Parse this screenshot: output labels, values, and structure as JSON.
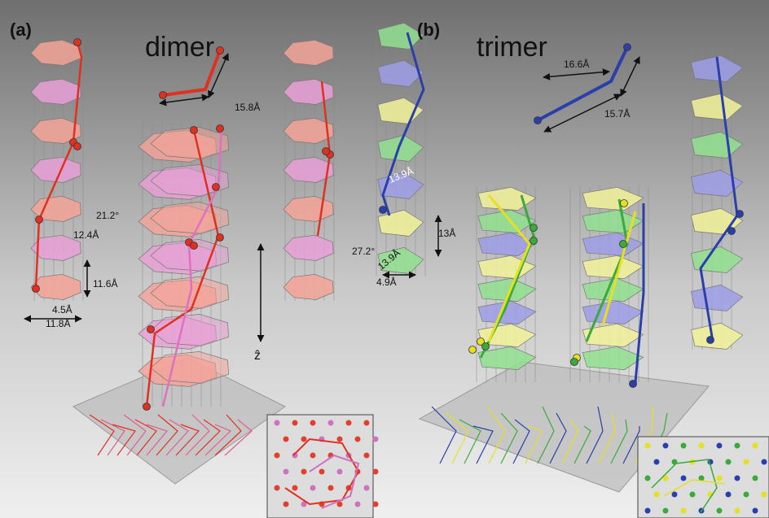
{
  "panel_a": {
    "label": "(a)",
    "title": "dimer",
    "annotations": [
      "15.8Å",
      "21.2°",
      "12.4Å",
      "11.6Å",
      "4.5Å",
      "11.8Å"
    ],
    "axis_label": "ẑ"
  },
  "panel_b": {
    "label": "(b)",
    "title": "trimer",
    "annotations": [
      "16.6Å",
      "15.7Å",
      "13.9Å",
      "13Å",
      "27.2°",
      "13.9Å",
      "4.9Å"
    ]
  }
}
